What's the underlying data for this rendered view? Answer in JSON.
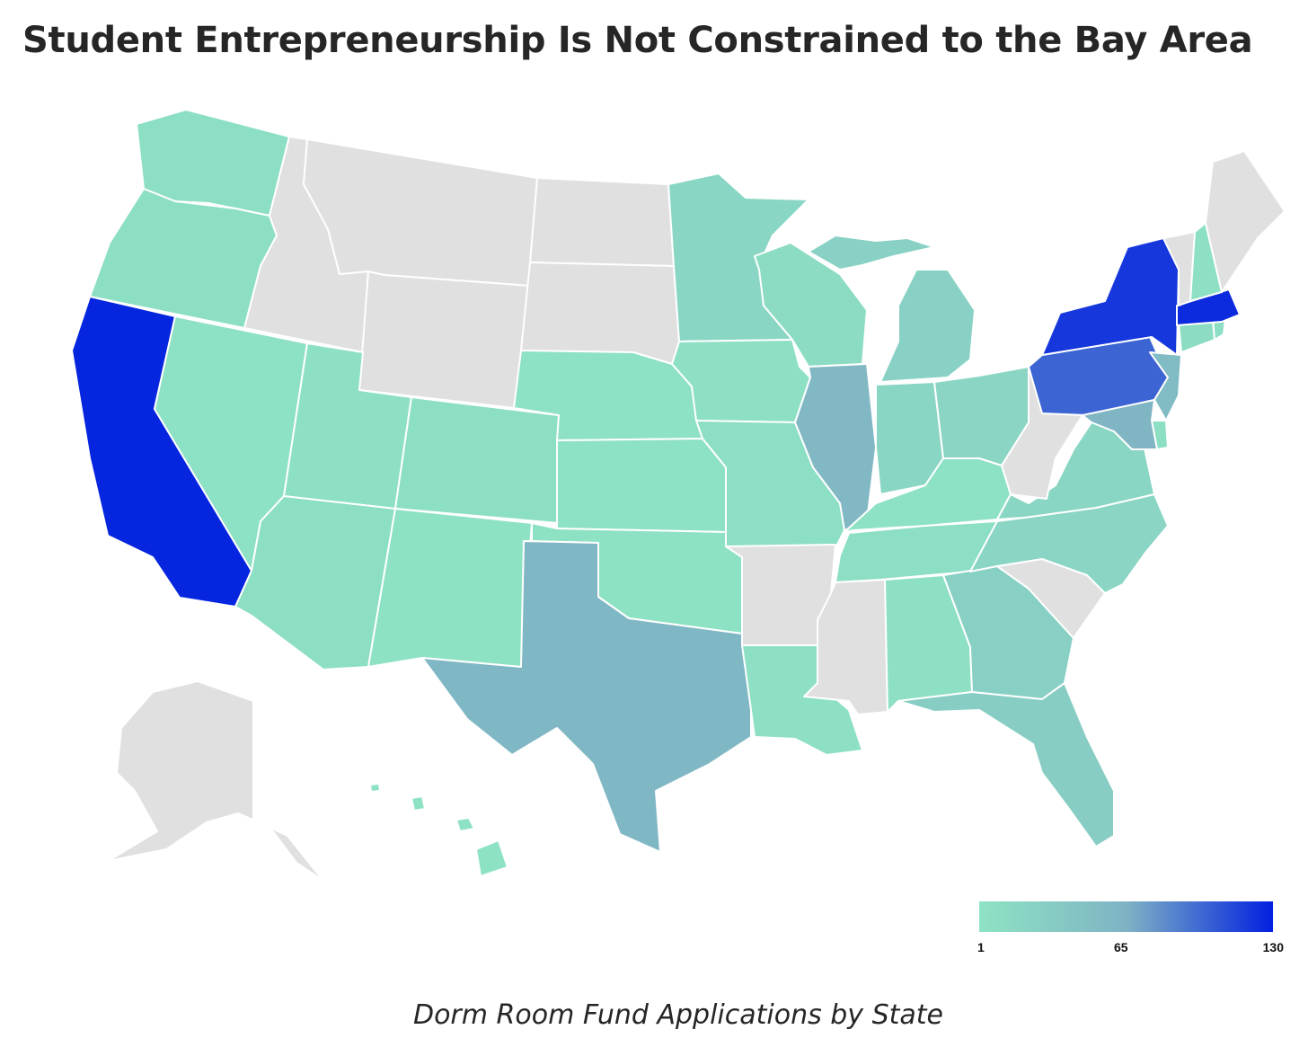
{
  "title": "Student Entrepreneurship Is Not Constrained to the Bay Area",
  "caption": "Dorm Room Fund Applications by State",
  "colors": {
    "no_data": "#e0e0e0",
    "scale_low": "#8ee3c4",
    "scale_mid": "#7fb3c4",
    "scale_high": "#0220e0",
    "border": "#ffffff"
  },
  "legend": {
    "min_label": "1",
    "mid_label": "65",
    "max_label": "130",
    "min": 1,
    "mid": 65,
    "max": 130
  },
  "chart_data": {
    "type": "choropleth",
    "value_estimates_note_excluded": null,
    "states": [
      {
        "state": "WA",
        "value": 8
      },
      {
        "state": "OR",
        "value": 6
      },
      {
        "state": "CA",
        "value": 128
      },
      {
        "state": "NV",
        "value": 4
      },
      {
        "state": "ID",
        "value": null
      },
      {
        "state": "MT",
        "value": null
      },
      {
        "state": "WY",
        "value": null
      },
      {
        "state": "UT",
        "value": 5
      },
      {
        "state": "CO",
        "value": 6
      },
      {
        "state": "AZ",
        "value": 7
      },
      {
        "state": "NM",
        "value": 3
      },
      {
        "state": "ND",
        "value": null
      },
      {
        "state": "SD",
        "value": null
      },
      {
        "state": "NE",
        "value": 4
      },
      {
        "state": "KS",
        "value": 4
      },
      {
        "state": "OK",
        "value": 3
      },
      {
        "state": "TX",
        "value": 60
      },
      {
        "state": "MN",
        "value": 18
      },
      {
        "state": "IA",
        "value": 5
      },
      {
        "state": "MO",
        "value": 8
      },
      {
        "state": "AR",
        "value": null
      },
      {
        "state": "LA",
        "value": 5
      },
      {
        "state": "WI",
        "value": 10
      },
      {
        "state": "IL",
        "value": 58
      },
      {
        "state": "MI",
        "value": 25
      },
      {
        "state": "IN",
        "value": 18
      },
      {
        "state": "OH",
        "value": 20
      },
      {
        "state": "KY",
        "value": 4
      },
      {
        "state": "TN",
        "value": 8
      },
      {
        "state": "MS",
        "value": null
      },
      {
        "state": "AL",
        "value": 5
      },
      {
        "state": "GA",
        "value": 28
      },
      {
        "state": "FL",
        "value": 30
      },
      {
        "state": "SC",
        "value": null
      },
      {
        "state": "NC",
        "value": 20
      },
      {
        "state": "VA",
        "value": 18
      },
      {
        "state": "WV",
        "value": null
      },
      {
        "state": "PA",
        "value": 100
      },
      {
        "state": "NY",
        "value": 120
      },
      {
        "state": "NJ",
        "value": 55
      },
      {
        "state": "DE",
        "value": 6
      },
      {
        "state": "MD",
        "value": 62
      },
      {
        "state": "CT",
        "value": 10
      },
      {
        "state": "RI",
        "value": 8
      },
      {
        "state": "MA",
        "value": 125
      },
      {
        "state": "VT",
        "value": null
      },
      {
        "state": "NH",
        "value": 5
      },
      {
        "state": "ME",
        "value": null
      },
      {
        "state": "AK",
        "value": null
      },
      {
        "state": "HI",
        "value": 3
      }
    ]
  }
}
